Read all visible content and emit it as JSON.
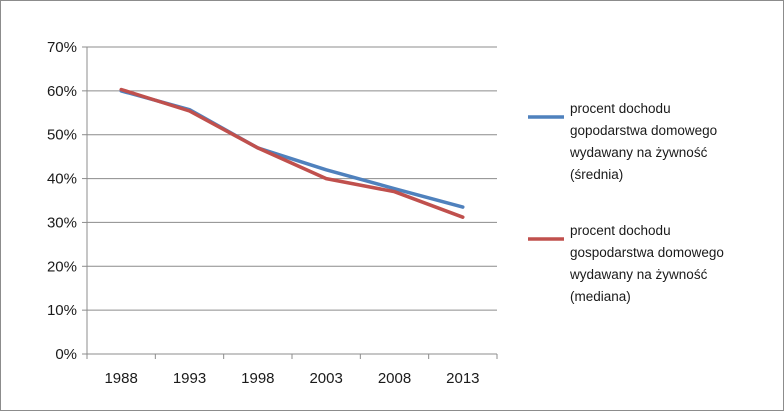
{
  "chart_data": {
    "type": "line",
    "title": "",
    "xlabel": "",
    "ylabel": "",
    "categories": [
      "1988",
      "1993",
      "1998",
      "2003",
      "2008",
      "2013"
    ],
    "x_point_years": [
      1988,
      1993,
      1998,
      2003,
      2008,
      2013
    ],
    "ylim": [
      0,
      70
    ],
    "y_ticks": [
      0,
      10,
      20,
      30,
      40,
      50,
      60,
      70
    ],
    "y_tick_suffix": "%",
    "grid": true,
    "legend_position": "right",
    "series": [
      {
        "name": "procent dochodu gopodarstwa domowego wydawany na żywność (średnia)",
        "legend_lines": [
          "procent dochodu",
          "gopodarstwa domowego",
          "wydawany na żywność",
          "(średnia)"
        ],
        "color": "#4f81bd",
        "values": [
          60.0,
          55.7,
          47.0,
          42.0,
          37.7,
          33.5
        ]
      },
      {
        "name": "procent dochodu gospodarstwa domowego wydawany na żywność (mediana)",
        "legend_lines": [
          "procent dochodu",
          "gospodarstwa domowego",
          "wydawany na żywność",
          "(mediana)"
        ],
        "color": "#c0504d",
        "values": [
          60.3,
          55.4,
          47.0,
          40.0,
          37.0,
          31.2
        ]
      }
    ]
  }
}
